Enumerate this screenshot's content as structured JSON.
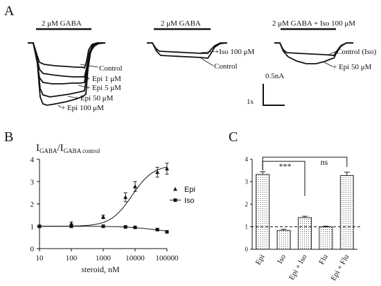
{
  "panel_a": {
    "letter": "A",
    "groups": [
      {
        "condition": "2 μM GABA",
        "labels": [
          "Control",
          "+ Epi 1 μM",
          "+ Epi 5 μM",
          "+ Epi 50 μM",
          "+ Epi 100 μM"
        ]
      },
      {
        "condition": "2 μM GABA",
        "labels": [
          "+Iso 100 μM",
          "Control"
        ]
      },
      {
        "condition": "2 μM GABA + Iso 100 μM",
        "labels": [
          "Control (Iso)",
          "+ Epi 50 μM"
        ]
      }
    ],
    "scale_bar": {
      "current": "0.5nA",
      "time": "1s"
    }
  },
  "chart_data": [
    {
      "panel": "B",
      "type": "scatter",
      "ylabel_main": "I",
      "ylabel_sub1": "GABA",
      "ylabel_slash": "/I",
      "ylabel_sub2": "GABA control",
      "xlabel": "steroid, nM",
      "xscale": "log",
      "xlim": [
        10,
        100000
      ],
      "ylim": [
        0,
        4
      ],
      "xticks": [
        "10",
        "100",
        "1000",
        "10000",
        "100000"
      ],
      "yticks": [
        "0",
        "1",
        "2",
        "3",
        "4"
      ],
      "legend_position": "right",
      "series": [
        {
          "name": "Epi",
          "marker": "triangle",
          "x": [
            10,
            100,
            1000,
            5000,
            10000,
            50000,
            100000
          ],
          "y": [
            1.0,
            1.12,
            1.42,
            2.3,
            2.78,
            3.42,
            3.58
          ],
          "err": [
            0.03,
            0.08,
            0.08,
            0.2,
            0.22,
            0.22,
            0.25
          ]
        },
        {
          "name": "Iso",
          "marker": "square",
          "x": [
            10,
            100,
            1000,
            5000,
            10000,
            50000,
            100000
          ],
          "y": [
            1.0,
            1.0,
            1.0,
            0.97,
            0.95,
            0.85,
            0.75
          ],
          "err": [
            0.02,
            0.02,
            0.02,
            0.03,
            0.03,
            0.04,
            0.04
          ]
        }
      ]
    },
    {
      "panel": "C",
      "type": "bar",
      "categories": [
        "Epi",
        "Iso",
        "Epi + Iso",
        "Flu",
        "Epi + Flu"
      ],
      "values": [
        3.33,
        0.84,
        1.41,
        1.0,
        3.28
      ],
      "err": [
        0.12,
        0.05,
        0.06,
        0.03,
        0.15
      ],
      "ylim": [
        0,
        4
      ],
      "yticks": [
        "0",
        "1",
        "2",
        "3",
        "4"
      ],
      "reference_line": 1,
      "annotations": [
        {
          "label": "***",
          "from": "Epi",
          "to": "Epi + Iso"
        },
        {
          "label": "ns",
          "from": "Epi",
          "to": "Epi + Flu"
        }
      ]
    }
  ],
  "panel_b_letter": "B",
  "panel_c_letter": "C"
}
